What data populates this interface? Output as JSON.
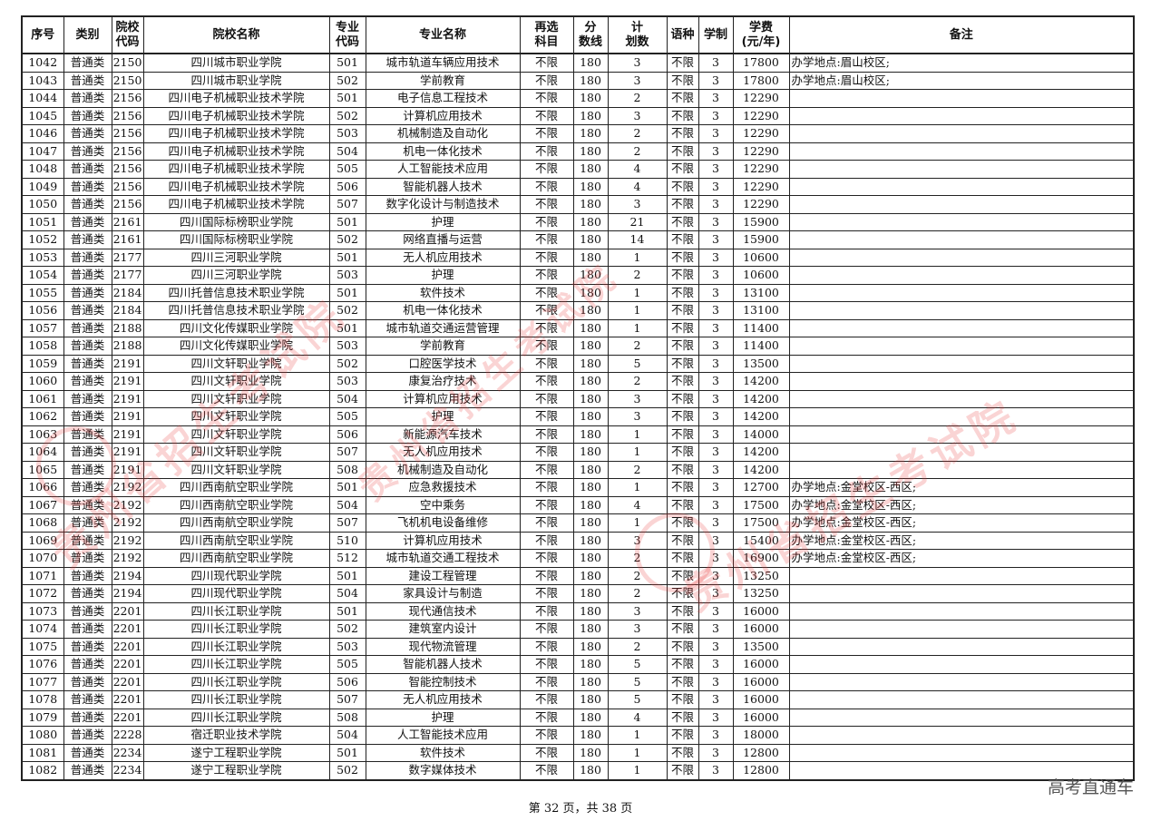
{
  "headers": [
    "序号",
    "类别",
    "院校\n代码",
    "院校名称",
    "专业\n代码",
    "专业名称",
    "再选\n科目",
    "分\n数线",
    "计\n划数",
    "语种",
    "学制",
    "学费\n(元/年)",
    "备注"
  ],
  "rows": [
    [
      "1042",
      "普通类",
      "2150",
      "四川城市职业学院",
      "501",
      "城市轨道车辆应用技术",
      "不限",
      "180",
      "3",
      "不限",
      "3",
      "17800",
      "办学地点:眉山校区;"
    ],
    [
      "1043",
      "普通类",
      "2150",
      "四川城市职业学院",
      "502",
      "学前教育",
      "不限",
      "180",
      "3",
      "不限",
      "3",
      "17800",
      "办学地点:眉山校区;"
    ],
    [
      "1044",
      "普通类",
      "2156",
      "四川电子机械职业技术学院",
      "501",
      "电子信息工程技术",
      "不限",
      "180",
      "2",
      "不限",
      "3",
      "12290",
      ""
    ],
    [
      "1045",
      "普通类",
      "2156",
      "四川电子机械职业技术学院",
      "502",
      "计算机应用技术",
      "不限",
      "180",
      "3",
      "不限",
      "3",
      "12290",
      ""
    ],
    [
      "1046",
      "普通类",
      "2156",
      "四川电子机械职业技术学院",
      "503",
      "机械制造及自动化",
      "不限",
      "180",
      "2",
      "不限",
      "3",
      "12290",
      ""
    ],
    [
      "1047",
      "普通类",
      "2156",
      "四川电子机械职业技术学院",
      "504",
      "机电一体化技术",
      "不限",
      "180",
      "2",
      "不限",
      "3",
      "12290",
      ""
    ],
    [
      "1048",
      "普通类",
      "2156",
      "四川电子机械职业技术学院",
      "505",
      "人工智能技术应用",
      "不限",
      "180",
      "4",
      "不限",
      "3",
      "12290",
      ""
    ],
    [
      "1049",
      "普通类",
      "2156",
      "四川电子机械职业技术学院",
      "506",
      "智能机器人技术",
      "不限",
      "180",
      "4",
      "不限",
      "3",
      "12290",
      ""
    ],
    [
      "1050",
      "普通类",
      "2156",
      "四川电子机械职业技术学院",
      "507",
      "数字化设计与制造技术",
      "不限",
      "180",
      "3",
      "不限",
      "3",
      "12290",
      ""
    ],
    [
      "1051",
      "普通类",
      "2161",
      "四川国际标榜职业学院",
      "501",
      "护理",
      "不限",
      "180",
      "21",
      "不限",
      "3",
      "15900",
      ""
    ],
    [
      "1052",
      "普通类",
      "2161",
      "四川国际标榜职业学院",
      "502",
      "网络直播与运营",
      "不限",
      "180",
      "14",
      "不限",
      "3",
      "15900",
      ""
    ],
    [
      "1053",
      "普通类",
      "2177",
      "四川三河职业学院",
      "501",
      "无人机应用技术",
      "不限",
      "180",
      "1",
      "不限",
      "3",
      "10600",
      ""
    ],
    [
      "1054",
      "普通类",
      "2177",
      "四川三河职业学院",
      "503",
      "护理",
      "不限",
      "180",
      "2",
      "不限",
      "3",
      "10600",
      ""
    ],
    [
      "1055",
      "普通类",
      "2184",
      "四川托普信息技术职业学院",
      "501",
      "软件技术",
      "不限",
      "180",
      "1",
      "不限",
      "3",
      "13100",
      ""
    ],
    [
      "1056",
      "普通类",
      "2184",
      "四川托普信息技术职业学院",
      "502",
      "机电一体化技术",
      "不限",
      "180",
      "1",
      "不限",
      "3",
      "13100",
      ""
    ],
    [
      "1057",
      "普通类",
      "2188",
      "四川文化传媒职业学院",
      "501",
      "城市轨道交通运营管理",
      "不限",
      "180",
      "1",
      "不限",
      "3",
      "11400",
      ""
    ],
    [
      "1058",
      "普通类",
      "2188",
      "四川文化传媒职业学院",
      "503",
      "学前教育",
      "不限",
      "180",
      "2",
      "不限",
      "3",
      "11400",
      ""
    ],
    [
      "1059",
      "普通类",
      "2191",
      "四川文轩职业学院",
      "502",
      "口腔医学技术",
      "不限",
      "180",
      "5",
      "不限",
      "3",
      "13500",
      ""
    ],
    [
      "1060",
      "普通类",
      "2191",
      "四川文轩职业学院",
      "503",
      "康复治疗技术",
      "不限",
      "180",
      "2",
      "不限",
      "3",
      "14200",
      ""
    ],
    [
      "1061",
      "普通类",
      "2191",
      "四川文轩职业学院",
      "504",
      "计算机应用技术",
      "不限",
      "180",
      "3",
      "不限",
      "3",
      "14200",
      ""
    ],
    [
      "1062",
      "普通类",
      "2191",
      "四川文轩职业学院",
      "505",
      "护理",
      "不限",
      "180",
      "3",
      "不限",
      "3",
      "14200",
      ""
    ],
    [
      "1063",
      "普通类",
      "2191",
      "四川文轩职业学院",
      "506",
      "新能源汽车技术",
      "不限",
      "180",
      "1",
      "不限",
      "3",
      "14000",
      ""
    ],
    [
      "1064",
      "普通类",
      "2191",
      "四川文轩职业学院",
      "507",
      "无人机应用技术",
      "不限",
      "180",
      "1",
      "不限",
      "3",
      "14200",
      ""
    ],
    [
      "1065",
      "普通类",
      "2191",
      "四川文轩职业学院",
      "508",
      "机械制造及自动化",
      "不限",
      "180",
      "2",
      "不限",
      "3",
      "14200",
      ""
    ],
    [
      "1066",
      "普通类",
      "2192",
      "四川西南航空职业学院",
      "501",
      "应急救援技术",
      "不限",
      "180",
      "1",
      "不限",
      "3",
      "12700",
      "办学地点:金堂校区-西区;"
    ],
    [
      "1067",
      "普通类",
      "2192",
      "四川西南航空职业学院",
      "504",
      "空中乘务",
      "不限",
      "180",
      "4",
      "不限",
      "3",
      "17500",
      "办学地点:金堂校区-西区;"
    ],
    [
      "1068",
      "普通类",
      "2192",
      "四川西南航空职业学院",
      "507",
      "飞机机电设备维修",
      "不限",
      "180",
      "1",
      "不限",
      "3",
      "17500",
      "办学地点:金堂校区-西区;"
    ],
    [
      "1069",
      "普通类",
      "2192",
      "四川西南航空职业学院",
      "510",
      "计算机应用技术",
      "不限",
      "180",
      "3",
      "不限",
      "3",
      "15400",
      "办学地点:金堂校区-西区;"
    ],
    [
      "1070",
      "普通类",
      "2192",
      "四川西南航空职业学院",
      "512",
      "城市轨道交通工程技术",
      "不限",
      "180",
      "2",
      "不限",
      "3",
      "16900",
      "办学地点:金堂校区-西区;"
    ],
    [
      "1071",
      "普通类",
      "2194",
      "四川现代职业学院",
      "501",
      "建设工程管理",
      "不限",
      "180",
      "2",
      "不限",
      "3",
      "13250",
      ""
    ],
    [
      "1072",
      "普通类",
      "2194",
      "四川现代职业学院",
      "504",
      "家具设计与制造",
      "不限",
      "180",
      "2",
      "不限",
      "3",
      "13250",
      ""
    ],
    [
      "1073",
      "普通类",
      "2201",
      "四川长江职业学院",
      "501",
      "现代通信技术",
      "不限",
      "180",
      "3",
      "不限",
      "3",
      "16000",
      ""
    ],
    [
      "1074",
      "普通类",
      "2201",
      "四川长江职业学院",
      "502",
      "建筑室内设计",
      "不限",
      "180",
      "3",
      "不限",
      "3",
      "16000",
      ""
    ],
    [
      "1075",
      "普通类",
      "2201",
      "四川长江职业学院",
      "503",
      "现代物流管理",
      "不限",
      "180",
      "2",
      "不限",
      "3",
      "13500",
      ""
    ],
    [
      "1076",
      "普通类",
      "2201",
      "四川长江职业学院",
      "505",
      "智能机器人技术",
      "不限",
      "180",
      "5",
      "不限",
      "3",
      "16000",
      ""
    ],
    [
      "1077",
      "普通类",
      "2201",
      "四川长江职业学院",
      "506",
      "智能控制技术",
      "不限",
      "180",
      "5",
      "不限",
      "3",
      "16000",
      ""
    ],
    [
      "1078",
      "普通类",
      "2201",
      "四川长江职业学院",
      "507",
      "无人机应用技术",
      "不限",
      "180",
      "5",
      "不限",
      "3",
      "16000",
      ""
    ],
    [
      "1079",
      "普通类",
      "2201",
      "四川长江职业学院",
      "508",
      "护理",
      "不限",
      "180",
      "4",
      "不限",
      "3",
      "16000",
      ""
    ],
    [
      "1080",
      "普通类",
      "2228",
      "宿迁职业技术学院",
      "504",
      "人工智能技术应用",
      "不限",
      "180",
      "1",
      "不限",
      "3",
      "18000",
      ""
    ],
    [
      "1081",
      "普通类",
      "2234",
      "遂宁工程职业学院",
      "501",
      "软件技术",
      "不限",
      "180",
      "1",
      "不限",
      "3",
      "12800",
      ""
    ],
    [
      "1082",
      "普通类",
      "2234",
      "遂宁工程职业学院",
      "502",
      "数字媒体技术",
      "不限",
      "180",
      "1",
      "不限",
      "3",
      "12800",
      ""
    ]
  ],
  "watermark": "贵州省招生考试院",
  "footer": "第 32 页，共 38 页",
  "brand": "高考直通车",
  "colors": {
    "watermark": "#e63c3c",
    "border": "#222222"
  }
}
